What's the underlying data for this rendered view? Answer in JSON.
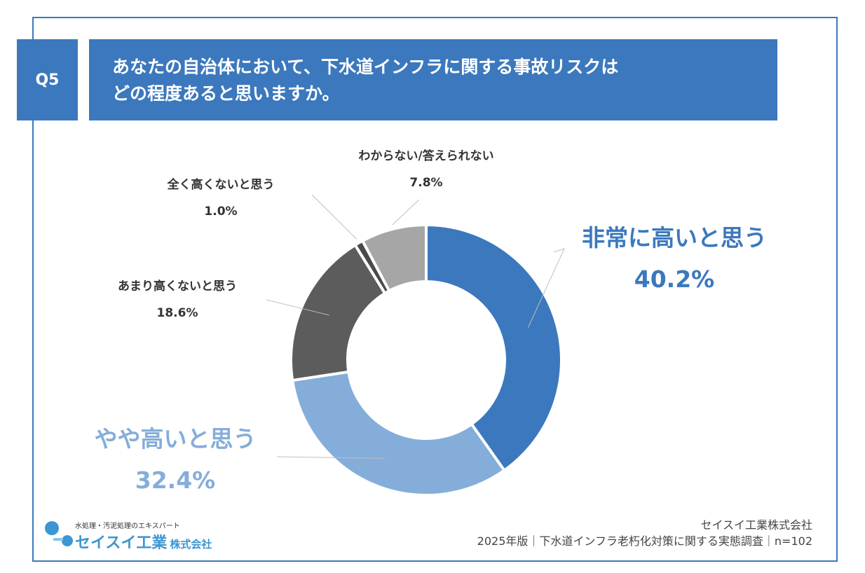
{
  "question": {
    "number": "Q5",
    "title_line1": "あなたの自治体において、下水道インフラに関する事故リスクは",
    "title_line2": "どの程度あると思いますか。"
  },
  "chart_data": {
    "type": "pie",
    "donut": true,
    "title": "あなたの自治体において、下水道インフラに関する事故リスクはどの程度あると思いますか。",
    "slices": [
      {
        "label": "非常に高いと思う",
        "value": 40.2,
        "display": "40.2%",
        "color": "#3c78bd",
        "text_color": "#3c78bd",
        "emphasis": true
      },
      {
        "label": "やや高いと思う",
        "value": 32.4,
        "display": "32.4%",
        "color": "#85add9",
        "text_color": "#85add9",
        "emphasis": true
      },
      {
        "label": "あまり高くないと思う",
        "value": 18.6,
        "display": "18.6%",
        "color": "#5c5c5c",
        "text_color": "#333333",
        "emphasis": false
      },
      {
        "label": "全く高くないと思う",
        "value": 1.0,
        "display": "1.0%",
        "color": "#4a4a4a",
        "text_color": "#333333",
        "emphasis": false
      },
      {
        "label": "わからない/答えられない",
        "value": 7.8,
        "display": "7.8%",
        "color": "#a6a6a6",
        "text_color": "#333333",
        "emphasis": false
      }
    ]
  },
  "logo": {
    "tagline": "水処理・汚泥処理のエキスパート",
    "name": "セイスイ工業",
    "name_sub": "株式会社"
  },
  "footer": {
    "company": "セイスイ工業株式会社",
    "survey": "2025年版｜下水道インフラ老朽化対策に関する実態調査｜n=102"
  },
  "colors": {
    "accent": "#3c78bd",
    "accent_light": "#85add9",
    "border": "#3c78bd"
  }
}
